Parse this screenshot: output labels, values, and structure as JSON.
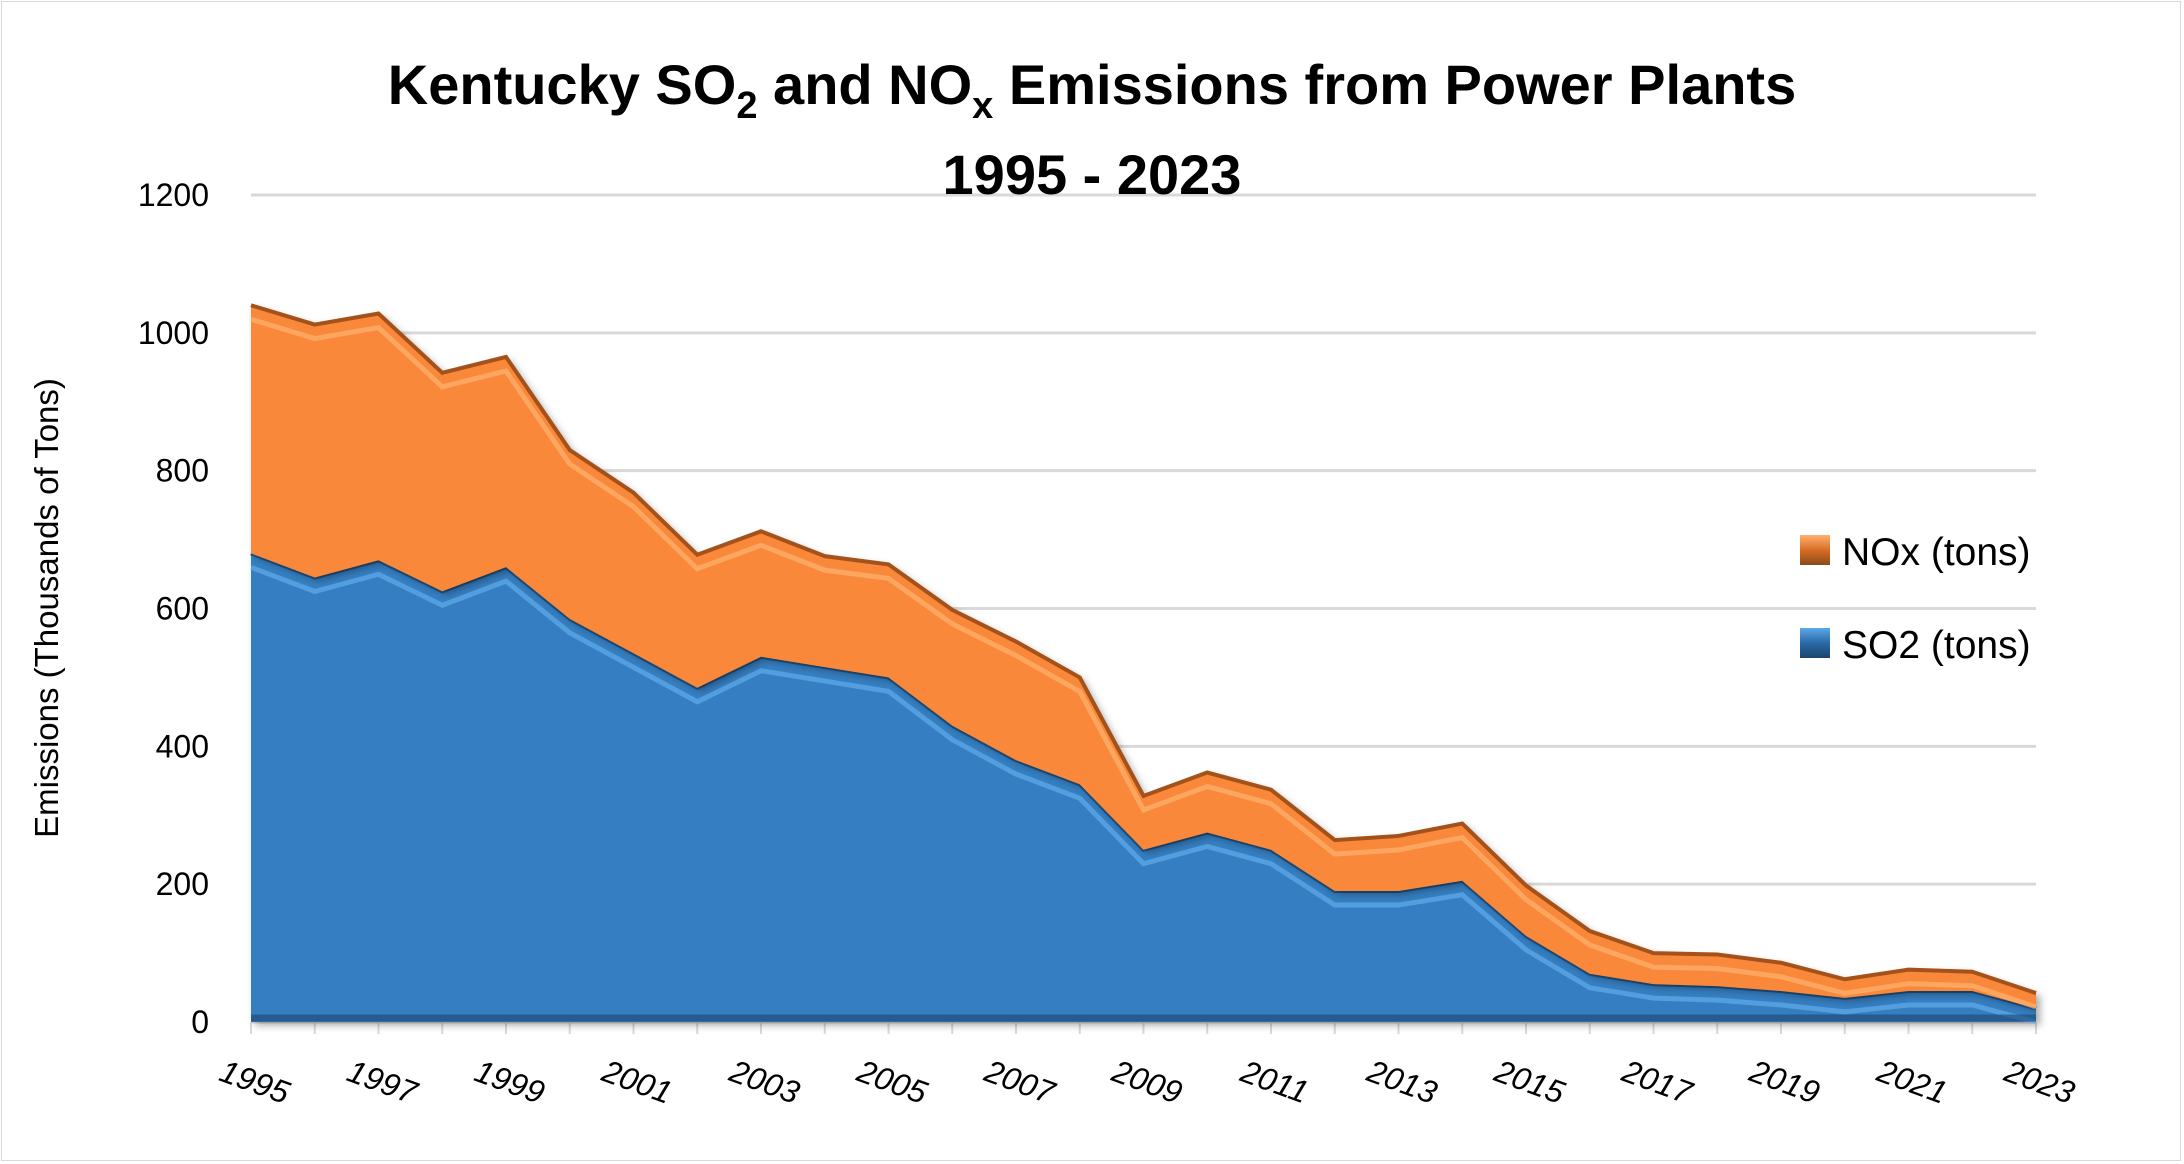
{
  "chart_data": {
    "type": "area",
    "stacked": true,
    "title_line1_parts": [
      "Kentucky SO",
      "2",
      " and NO",
      "x",
      " Emissions from Power Plants"
    ],
    "title_line2": "1995 - 2023",
    "xlabel": "",
    "ylabel": "Emissions (Thousands of Tons)",
    "ylim": [
      0,
      1200
    ],
    "yticks": [
      "0",
      "200",
      "400",
      "600",
      "800",
      "1000",
      "1200"
    ],
    "grid": true,
    "legend_position": "right",
    "x": [
      1995,
      1996,
      1997,
      1998,
      1999,
      2000,
      2001,
      2002,
      2003,
      2004,
      2005,
      2006,
      2007,
      2008,
      2009,
      2010,
      2011,
      2012,
      2013,
      2014,
      2015,
      2016,
      2017,
      2018,
      2019,
      2020,
      2021,
      2022,
      2023
    ],
    "xtick_labels": [
      "1995",
      "1997",
      "1999",
      "2001",
      "2003",
      "2005",
      "2007",
      "2009",
      "2011",
      "2013",
      "2015",
      "2017",
      "2019",
      "2021",
      "2023"
    ],
    "series": [
      {
        "name": "SO2 (tons)",
        "color": "#367ec1",
        "values": [
          680,
          645,
          670,
          625,
          660,
          585,
          535,
          485,
          530,
          515,
          500,
          430,
          380,
          345,
          250,
          275,
          250,
          190,
          190,
          205,
          125,
          70,
          55,
          52,
          45,
          35,
          45,
          45,
          20
        ]
      },
      {
        "name": "NOx (tons)",
        "color": "#f9883a",
        "values": [
          360,
          367,
          358,
          317,
          305,
          245,
          233,
          193,
          182,
          161,
          164,
          168,
          172,
          155,
          78,
          87,
          87,
          74,
          80,
          83,
          73,
          62,
          45,
          46,
          41,
          27,
          31,
          28,
          22
        ]
      }
    ]
  }
}
